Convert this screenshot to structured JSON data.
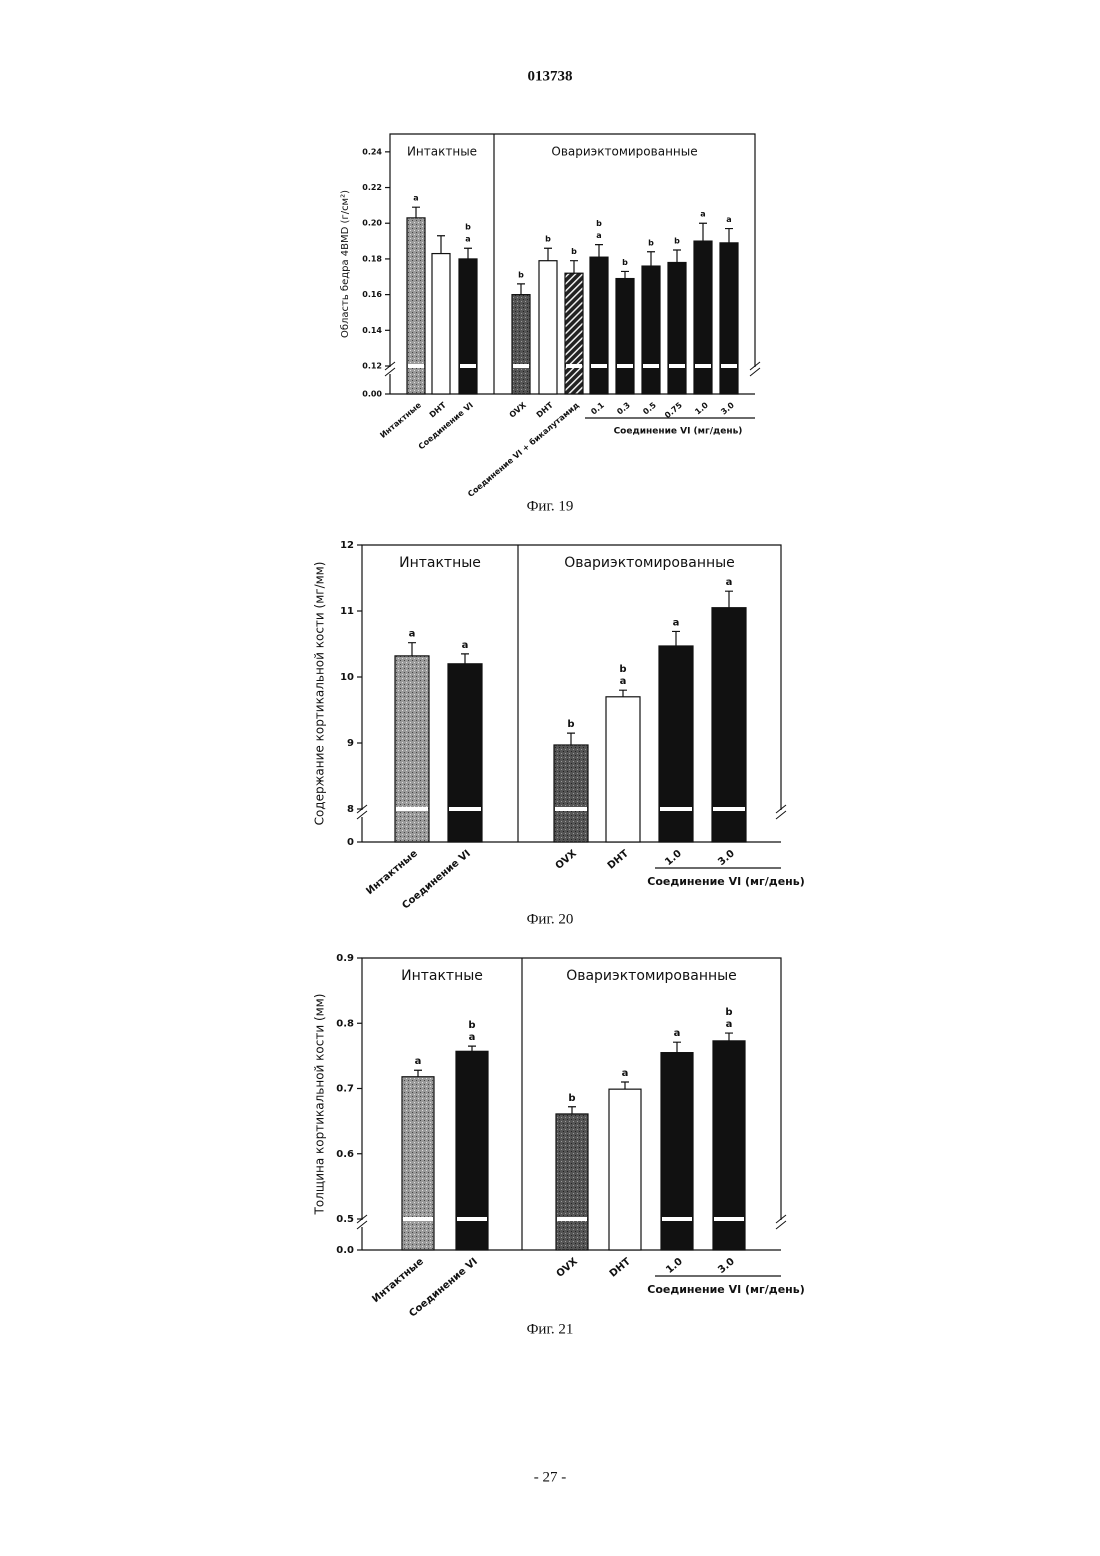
{
  "header": {
    "number": "013738"
  },
  "footer": "- 27 -",
  "chart_data": [
    {
      "type": "bar",
      "caption": "Фиг. 19",
      "y_label": "Область бедра 4BMD (г/см²)",
      "ylim": [
        0,
        0.25
      ],
      "yticks": [
        {
          "value": 0,
          "label": "0.00"
        },
        0.12,
        0.14,
        0.16,
        0.18,
        {
          "value": 0.2,
          "label": "0.20"
        },
        0.22,
        0.24
      ],
      "axis_break": true,
      "groups": [
        {
          "label": "Интактные",
          "bars": [
            {
              "category": "Интактные",
              "value": 0.203,
              "error": 0.006,
              "letters": [
                "a"
              ],
              "style": "stipple"
            },
            {
              "category": "DHT",
              "value": 0.183,
              "error": 0.01,
              "style": "open"
            },
            {
              "category": "Соединение VI",
              "value": 0.18,
              "error": 0.006,
              "letters": [
                "b",
                "a"
              ],
              "style": "solid"
            }
          ]
        },
        {
          "label": "Овариэктомированные",
          "bars": [
            {
              "category": "OVX",
              "value": 0.16,
              "error": 0.006,
              "letters": [
                "b"
              ],
              "style": "dark"
            },
            {
              "category": "DHT",
              "value": 0.179,
              "error": 0.007,
              "letters": [
                "b"
              ],
              "style": "open"
            },
            {
              "category": "Соединение VI + бикалутамид",
              "value": 0.172,
              "error": 0.007,
              "letters": [
                "b"
              ],
              "style": "hatch"
            }
          ],
          "dose_group": {
            "label": "Соединение VI (мг/день)",
            "bars": [
              {
                "category": "0.1",
                "value": 0.181,
                "error": 0.007,
                "letters": [
                  "b",
                  "a"
                ],
                "style": "solid"
              },
              {
                "category": "0.3",
                "value": 0.169,
                "error": 0.004,
                "letters": [
                  "b"
                ],
                "style": "solid"
              },
              {
                "category": "0.5",
                "value": 0.176,
                "error": 0.008,
                "letters": [
                  "b"
                ],
                "style": "solid"
              },
              {
                "category": "0.75",
                "value": 0.178,
                "error": 0.007,
                "letters": [
                  "b"
                ],
                "style": "solid"
              },
              {
                "category": "1.0",
                "value": 0.19,
                "error": 0.01,
                "letters": [
                  "a"
                ],
                "style": "solid"
              },
              {
                "category": "3.0",
                "value": 0.189,
                "error": 0.008,
                "letters": [
                  "a"
                ],
                "style": "solid"
              }
            ]
          }
        }
      ]
    },
    {
      "type": "bar",
      "caption": "Фиг. 20",
      "y_label": "Содержание кортикальной кости (мг/мм)",
      "ylim": [
        0,
        12
      ],
      "yticks": [
        0,
        8,
        9,
        10,
        11,
        12
      ],
      "axis_break": true,
      "groups": [
        {
          "label": "Интактные",
          "bars": [
            {
              "category": "Интактные",
              "value": 10.32,
              "error": 0.2,
              "letters": [
                "a"
              ],
              "style": "stipple"
            },
            {
              "category": "Соединение VI",
              "value": 10.2,
              "error": 0.15,
              "letters": [
                "a"
              ],
              "style": "solid"
            }
          ]
        },
        {
          "label": "Овариэктомированные",
          "bars": [
            {
              "category": "OVX",
              "value": 8.97,
              "error": 0.18,
              "letters": [
                "b"
              ],
              "style": "dark"
            },
            {
              "category": "DHT",
              "value": 9.7,
              "error": 0.1,
              "letters": [
                "b",
                "a"
              ],
              "style": "open"
            }
          ],
          "dose_group": {
            "label": "Соединение VI (мг/день)",
            "bars": [
              {
                "category": "1.0",
                "value": 10.47,
                "error": 0.22,
                "letters": [
                  "a"
                ],
                "style": "solid"
              },
              {
                "category": "3.0",
                "value": 11.05,
                "error": 0.25,
                "letters": [
                  "a"
                ],
                "style": "solid"
              }
            ]
          }
        }
      ]
    },
    {
      "type": "bar",
      "caption": "Фиг. 21",
      "y_label": "Толщина кортикальной кости (мм)",
      "ylim": [
        0,
        0.9
      ],
      "yticks": [
        {
          "value": 0,
          "label": "0.0"
        },
        0.5,
        0.6,
        0.7,
        0.8,
        0.9
      ],
      "axis_break": true,
      "groups": [
        {
          "label": "Интактные",
          "bars": [
            {
              "category": "Интактные",
              "value": 0.718,
              "error": 0.01,
              "letters": [
                "a"
              ],
              "style": "stipple"
            },
            {
              "category": "Соединение VI",
              "value": 0.757,
              "error": 0.008,
              "letters": [
                "b",
                "a"
              ],
              "style": "solid"
            }
          ]
        },
        {
          "label": "Овариэктомированные",
          "bars": [
            {
              "category": "OVX",
              "value": 0.661,
              "error": 0.011,
              "letters": [
                "b"
              ],
              "style": "dark"
            },
            {
              "category": "DHT",
              "value": 0.699,
              "error": 0.011,
              "letters": [
                "a"
              ],
              "style": "open"
            }
          ],
          "dose_group": {
            "label": "Соединение VI (мг/день)",
            "bars": [
              {
                "category": "1.0",
                "value": 0.755,
                "error": 0.016,
                "letters": [
                  "a"
                ],
                "style": "solid"
              },
              {
                "category": "3.0",
                "value": 0.773,
                "error": 0.012,
                "letters": [
                  "b",
                  "a"
                ],
                "style": "solid"
              }
            ]
          }
        }
      ]
    }
  ]
}
